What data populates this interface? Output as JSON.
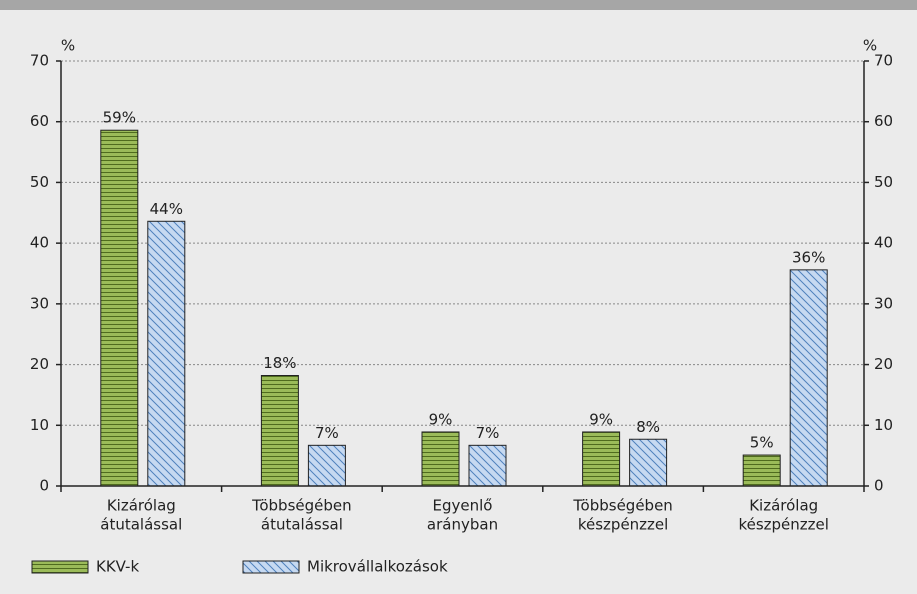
{
  "chart_data": {
    "type": "bar",
    "y_unit": "%",
    "y2_unit": "%",
    "categories": [
      [
        "Kizárólag",
        "átutalással"
      ],
      [
        "Többségében",
        "átutalással"
      ],
      [
        "Egyenlő",
        "arányban"
      ],
      [
        "Többségében",
        "készpénzzel"
      ],
      [
        "Kizárólag",
        "készpénzzel"
      ]
    ],
    "series": [
      {
        "name": "KKV-k",
        "color": "#9bbb59",
        "hatch": "horizontal",
        "values": [
          58.6,
          18.2,
          8.9,
          8.9,
          5.1
        ],
        "value_labels": [
          "59%",
          "18%",
          "9%",
          "9%",
          "5%"
        ]
      },
      {
        "name": "Mikrovállalkozások",
        "color": "#c6d9f1",
        "hatch": "diagonal",
        "values": [
          43.6,
          6.7,
          6.7,
          7.7,
          35.6
        ],
        "value_labels": [
          "44%",
          "7%",
          "7%",
          "8%",
          "36%"
        ]
      }
    ],
    "ylim": [
      0,
      70
    ],
    "yticks": [
      0,
      10,
      20,
      30,
      40,
      50,
      60,
      70
    ],
    "y2lim": [
      0,
      70
    ],
    "y2ticks": [
      0,
      10,
      20,
      30,
      40,
      50,
      60,
      70
    ],
    "grid": true,
    "legend": "bottom-left"
  }
}
